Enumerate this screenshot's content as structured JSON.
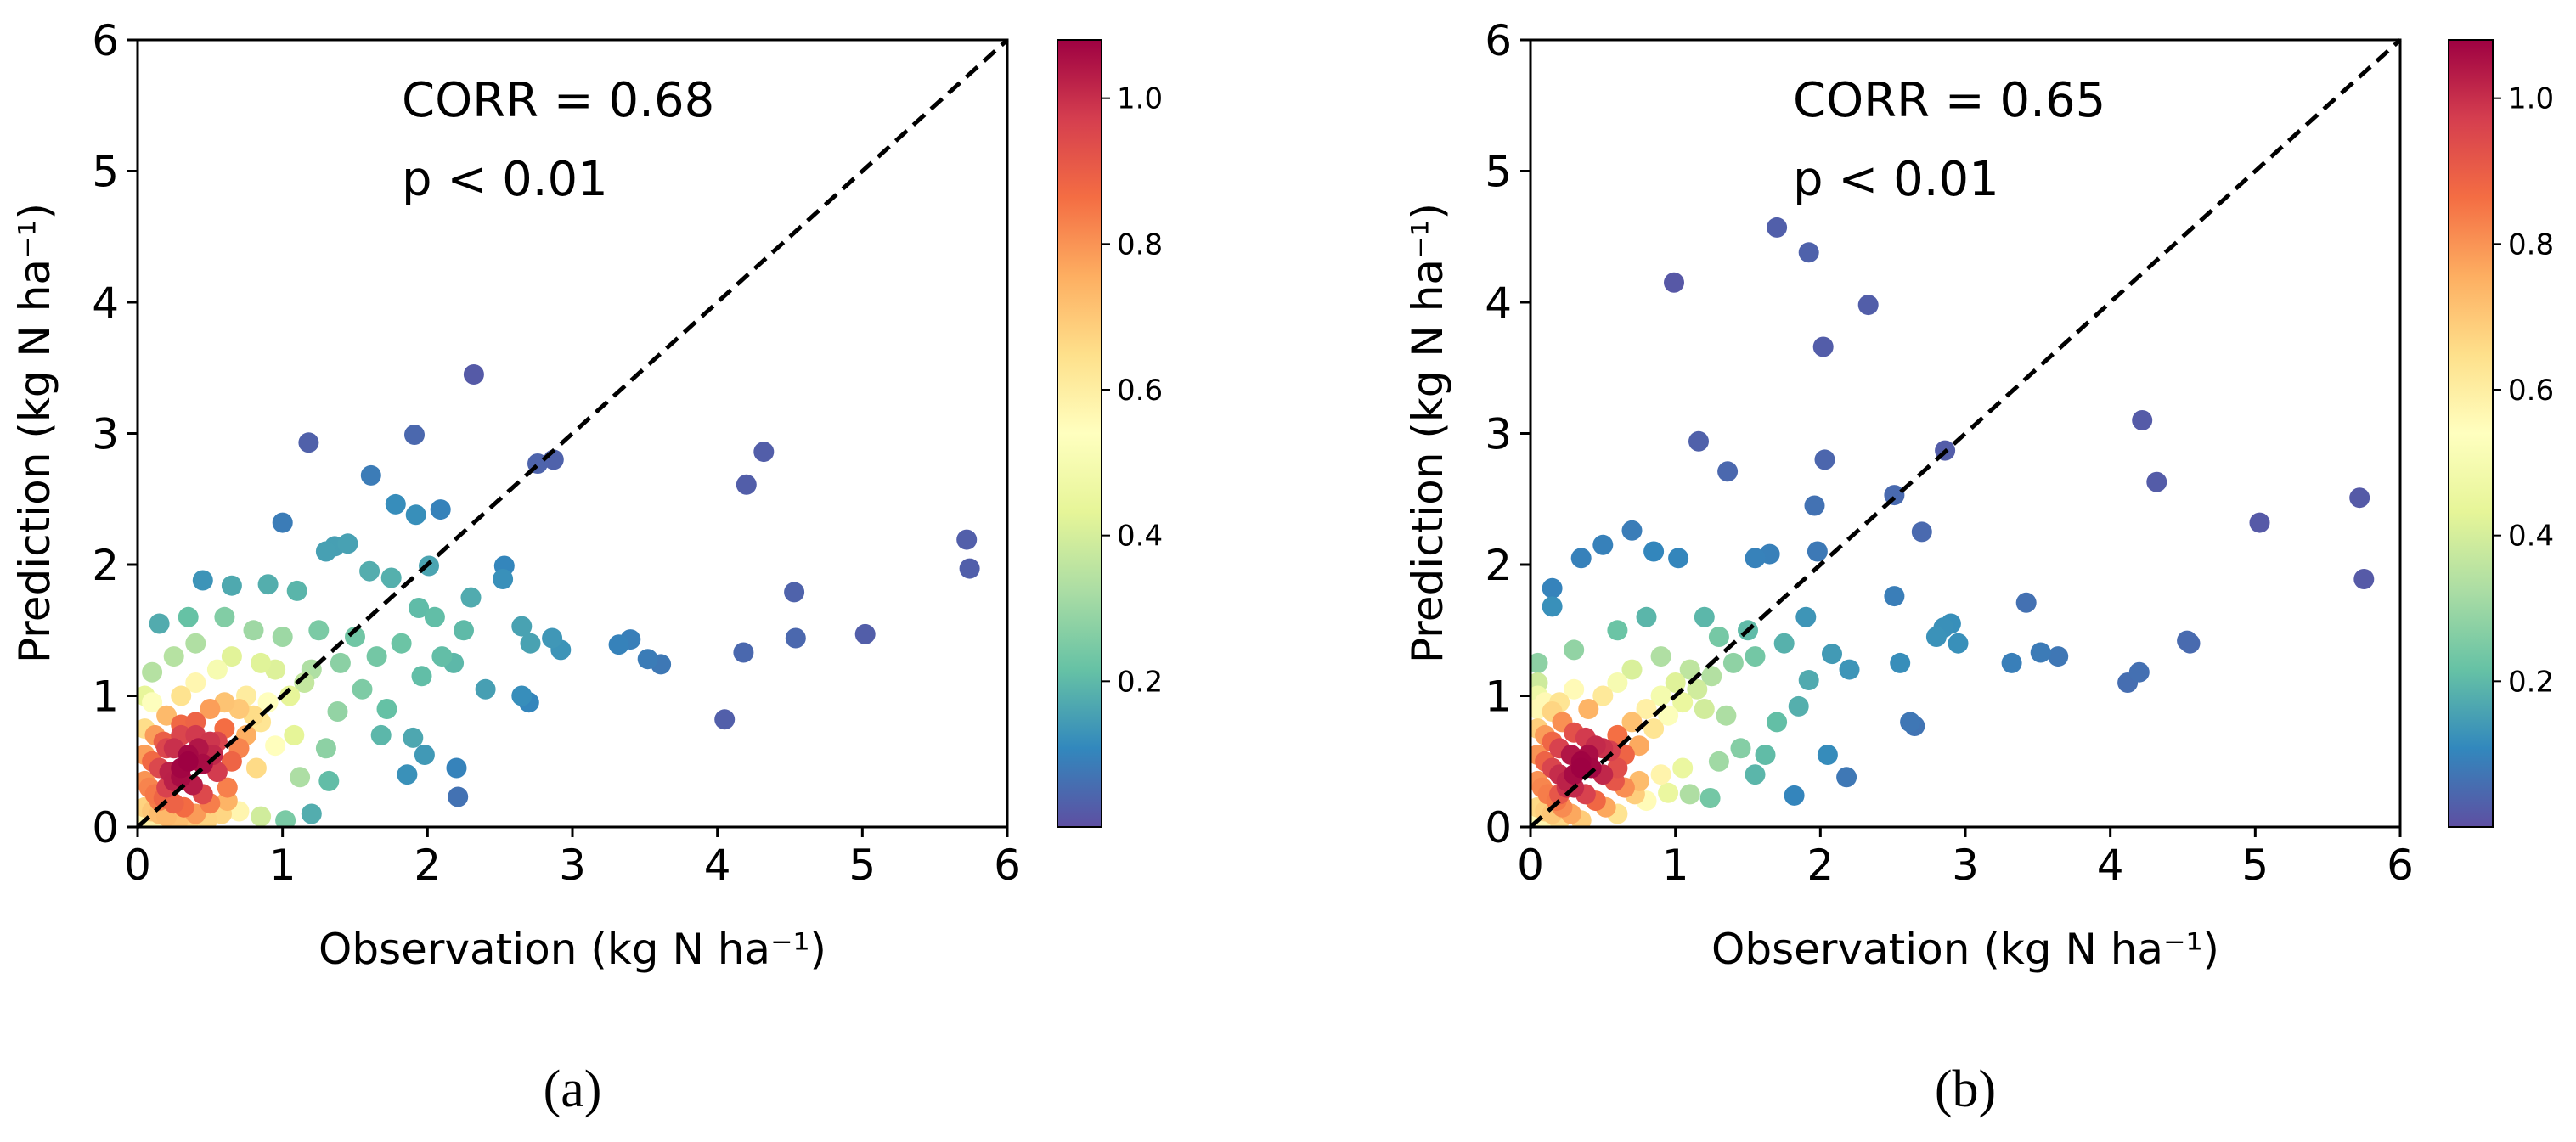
{
  "chart_data": [
    {
      "type": "scatter",
      "panel_label": "(a)",
      "xlabel": "Observation (kg N ha⁻¹)",
      "ylabel": "Prediction (kg N ha⁻¹)",
      "xlim": [
        0,
        6
      ],
      "ylim": [
        0,
        6
      ],
      "xticks": [
        "0",
        "1",
        "2",
        "3",
        "4",
        "5",
        "6"
      ],
      "yticks": [
        "0",
        "1",
        "2",
        "3",
        "4",
        "5",
        "6"
      ],
      "annotations": [
        "CORR = 0.68",
        "p < 0.01"
      ],
      "reference_line": "1:1 dashed",
      "colorbar": {
        "ticks": [
          "0.2",
          "0.4",
          "0.6",
          "0.8",
          "1.0"
        ],
        "range": [
          0.0,
          1.08
        ],
        "colormap": "Spectral_r"
      },
      "points": [
        [
          2.32,
          3.45
        ],
        [
          1.91,
          2.99
        ],
        [
          1.18,
          2.93
        ],
        [
          4.32,
          2.86
        ],
        [
          2.87,
          2.8
        ],
        [
          2.76,
          2.77
        ],
        [
          4.2,
          2.61
        ],
        [
          2.09,
          2.42
        ],
        [
          1.61,
          2.68
        ],
        [
          1.78,
          2.46
        ],
        [
          1.92,
          2.38
        ],
        [
          5.72,
          2.19
        ],
        [
          5.74,
          1.97
        ],
        [
          1.36,
          2.14
        ],
        [
          1.0,
          2.32
        ],
        [
          1.45,
          2.16
        ],
        [
          1.3,
          2.1
        ],
        [
          2.53,
          1.99
        ],
        [
          2.52,
          1.89
        ],
        [
          2.01,
          1.99
        ],
        [
          4.53,
          1.79
        ],
        [
          5.02,
          1.47
        ],
        [
          4.54,
          1.44
        ],
        [
          1.94,
          1.67
        ],
        [
          0.45,
          1.88
        ],
        [
          0.15,
          1.55
        ],
        [
          0.35,
          1.6
        ],
        [
          0.65,
          1.84
        ],
        [
          0.9,
          1.85
        ],
        [
          1.1,
          1.8
        ],
        [
          1.6,
          1.95
        ],
        [
          1.75,
          1.9
        ],
        [
          2.3,
          1.75
        ],
        [
          2.65,
          1.53
        ],
        [
          2.71,
          1.4
        ],
        [
          2.86,
          1.44
        ],
        [
          2.92,
          1.35
        ],
        [
          3.32,
          1.39
        ],
        [
          3.4,
          1.43
        ],
        [
          3.52,
          1.28
        ],
        [
          3.61,
          1.24
        ],
        [
          4.18,
          1.33
        ],
        [
          4.05,
          0.82
        ],
        [
          2.25,
          1.5
        ],
        [
          2.1,
          1.3
        ],
        [
          1.96,
          1.15
        ],
        [
          2.4,
          1.05
        ],
        [
          2.65,
          1.0
        ],
        [
          2.7,
          0.95
        ],
        [
          2.2,
          0.45
        ],
        [
          2.21,
          0.23
        ],
        [
          1.98,
          0.55
        ],
        [
          1.9,
          0.68
        ],
        [
          1.86,
          0.4
        ],
        [
          1.68,
          0.7
        ],
        [
          1.72,
          0.9
        ],
        [
          1.55,
          1.05
        ],
        [
          1.38,
          0.88
        ],
        [
          1.3,
          0.6
        ],
        [
          1.32,
          0.35
        ],
        [
          1.2,
          0.1
        ],
        [
          1.02,
          0.05
        ],
        [
          0.85,
          0.08
        ],
        [
          0.7,
          0.12
        ],
        [
          1.12,
          0.38
        ],
        [
          1.08,
          0.7
        ],
        [
          0.95,
          0.62
        ],
        [
          0.82,
          0.45
        ],
        [
          0.62,
          0.3
        ],
        [
          0.52,
          0.55
        ],
        [
          1.0,
          1.45
        ],
        [
          1.25,
          1.5
        ],
        [
          1.5,
          1.45
        ],
        [
          1.82,
          1.4
        ],
        [
          2.05,
          1.6
        ],
        [
          2.18,
          1.25
        ],
        [
          0.25,
          1.3
        ],
        [
          0.1,
          1.18
        ],
        [
          0.4,
          1.4
        ],
        [
          0.6,
          1.6
        ],
        [
          0.8,
          1.5
        ],
        [
          0.05,
          1.0
        ],
        [
          0.1,
          0.95
        ],
        [
          0.2,
          0.85
        ],
        [
          0.3,
          0.78
        ],
        [
          0.4,
          0.7
        ],
        [
          0.55,
          0.65
        ],
        [
          0.7,
          0.6
        ],
        [
          0.8,
          0.85
        ],
        [
          0.9,
          0.95
        ],
        [
          1.15,
          1.1
        ],
        [
          1.4,
          1.25
        ],
        [
          1.65,
          1.3
        ],
        [
          0.05,
          0.75
        ],
        [
          0.12,
          0.7
        ],
        [
          0.18,
          0.65
        ],
        [
          0.25,
          0.6
        ],
        [
          0.35,
          0.55
        ],
        [
          0.45,
          0.48
        ],
        [
          0.55,
          0.42
        ],
        [
          0.65,
          0.5
        ],
        [
          0.75,
          0.7
        ],
        [
          0.85,
          0.8
        ],
        [
          1.05,
          1.0
        ],
        [
          1.2,
          1.2
        ],
        [
          0.05,
          0.55
        ],
        [
          0.1,
          0.5
        ],
        [
          0.15,
          0.45
        ],
        [
          0.22,
          0.42
        ],
        [
          0.3,
          0.38
        ],
        [
          0.38,
          0.32
        ],
        [
          0.45,
          0.25
        ],
        [
          0.5,
          0.18
        ],
        [
          0.58,
          0.1
        ],
        [
          0.62,
          0.2
        ],
        [
          0.05,
          0.35
        ],
        [
          0.08,
          0.3
        ],
        [
          0.12,
          0.25
        ],
        [
          0.18,
          0.22
        ],
        [
          0.25,
          0.18
        ],
        [
          0.32,
          0.15
        ],
        [
          0.4,
          0.1
        ],
        [
          0.48,
          0.05
        ],
        [
          0.05,
          0.15
        ],
        [
          0.1,
          0.12
        ],
        [
          0.15,
          0.1
        ],
        [
          0.2,
          0.08
        ],
        [
          0.28,
          0.05
        ],
        [
          0.35,
          0.03
        ],
        [
          0.05,
          0.05
        ],
        [
          0.1,
          0.03
        ],
        [
          0.15,
          0.2
        ],
        [
          0.2,
          0.3
        ],
        [
          0.25,
          0.35
        ],
        [
          0.3,
          0.45
        ],
        [
          0.35,
          0.5
        ],
        [
          0.42,
          0.6
        ],
        [
          0.5,
          0.65
        ],
        [
          0.6,
          0.75
        ],
        [
          0.7,
          0.9
        ],
        [
          0.75,
          1.0
        ],
        [
          0.95,
          1.2
        ],
        [
          0.3,
          1.0
        ],
        [
          0.4,
          1.1
        ],
        [
          0.55,
          1.2
        ],
        [
          0.65,
          1.3
        ],
        [
          0.85,
          1.25
        ],
        [
          0.5,
          0.9
        ],
        [
          0.6,
          0.95
        ],
        [
          0.2,
          0.6
        ],
        [
          0.3,
          0.7
        ],
        [
          0.4,
          0.8
        ]
      ]
    },
    {
      "type": "scatter",
      "panel_label": "(b)",
      "xlabel": "Observation (kg N ha⁻¹)",
      "ylabel": "Prediction (kg N ha⁻¹)",
      "xlim": [
        0,
        6
      ],
      "ylim": [
        0,
        6
      ],
      "xticks": [
        "0",
        "1",
        "2",
        "3",
        "4",
        "5",
        "6"
      ],
      "yticks": [
        "0",
        "1",
        "2",
        "3",
        "4",
        "5",
        "6"
      ],
      "annotations": [
        "CORR = 0.65",
        "p < 0.01"
      ],
      "reference_line": "1:1 dashed",
      "colorbar": {
        "ticks": [
          "0.2",
          "0.4",
          "0.6",
          "0.8",
          "1.0"
        ],
        "range": [
          0.0,
          1.08
        ],
        "colormap": "Spectral_r"
      },
      "points": [
        [
          1.7,
          4.57
        ],
        [
          1.92,
          4.38
        ],
        [
          0.99,
          4.15
        ],
        [
          2.33,
          3.98
        ],
        [
          2.02,
          3.66
        ],
        [
          4.22,
          3.1
        ],
        [
          1.16,
          2.94
        ],
        [
          2.86,
          2.87
        ],
        [
          2.03,
          2.8
        ],
        [
          1.36,
          2.71
        ],
        [
          4.32,
          2.63
        ],
        [
          2.51,
          2.53
        ],
        [
          5.72,
          2.51
        ],
        [
          1.96,
          2.45
        ],
        [
          5.03,
          2.32
        ],
        [
          0.7,
          2.26
        ],
        [
          2.7,
          2.25
        ],
        [
          0.35,
          2.05
        ],
        [
          0.5,
          2.15
        ],
        [
          0.85,
          2.1
        ],
        [
          1.02,
          2.05
        ],
        [
          1.55,
          2.05
        ],
        [
          1.65,
          2.08
        ],
        [
          1.98,
          2.1
        ],
        [
          0.15,
          1.82
        ],
        [
          0.15,
          1.68
        ],
        [
          5.75,
          1.89
        ],
        [
          2.51,
          1.76
        ],
        [
          3.42,
          1.71
        ],
        [
          4.53,
          1.42
        ],
        [
          4.55,
          1.4
        ],
        [
          3.52,
          1.33
        ],
        [
          3.64,
          1.3
        ],
        [
          3.32,
          1.25
        ],
        [
          2.8,
          1.45
        ],
        [
          2.9,
          1.55
        ],
        [
          2.95,
          1.4
        ],
        [
          2.55,
          1.25
        ],
        [
          2.85,
          1.52
        ],
        [
          2.2,
          1.2
        ],
        [
          2.08,
          1.32
        ],
        [
          1.92,
          1.12
        ],
        [
          1.85,
          0.92
        ],
        [
          1.7,
          0.8
        ],
        [
          1.62,
          0.55
        ],
        [
          1.55,
          0.4
        ],
        [
          1.45,
          0.6
        ],
        [
          1.3,
          0.5
        ],
        [
          1.24,
          0.22
        ],
        [
          1.1,
          0.25
        ],
        [
          0.95,
          0.26
        ],
        [
          1.05,
          0.45
        ],
        [
          2.05,
          0.55
        ],
        [
          2.18,
          0.38
        ],
        [
          1.82,
          0.24
        ],
        [
          2.62,
          0.8
        ],
        [
          2.65,
          0.77
        ],
        [
          4.12,
          1.1
        ],
        [
          4.2,
          1.18
        ],
        [
          1.9,
          1.6
        ],
        [
          1.75,
          1.4
        ],
        [
          1.5,
          1.5
        ],
        [
          1.3,
          1.45
        ],
        [
          1.2,
          1.6
        ],
        [
          0.8,
          1.6
        ],
        [
          0.6,
          1.5
        ],
        [
          0.3,
          1.35
        ],
        [
          0.05,
          1.25
        ],
        [
          0.05,
          1.1
        ],
        [
          0.1,
          0.95
        ],
        [
          0.15,
          0.88
        ],
        [
          0.22,
          0.8
        ],
        [
          0.3,
          0.72
        ],
        [
          0.38,
          0.68
        ],
        [
          0.45,
          0.62
        ],
        [
          0.55,
          0.58
        ],
        [
          0.65,
          0.55
        ],
        [
          0.75,
          0.62
        ],
        [
          0.85,
          0.75
        ],
        [
          0.95,
          0.85
        ],
        [
          1.05,
          0.95
        ],
        [
          1.15,
          1.05
        ],
        [
          1.25,
          1.15
        ],
        [
          1.4,
          1.25
        ],
        [
          1.55,
          1.3
        ],
        [
          0.05,
          0.75
        ],
        [
          0.1,
          0.7
        ],
        [
          0.15,
          0.65
        ],
        [
          0.2,
          0.6
        ],
        [
          0.28,
          0.55
        ],
        [
          0.35,
          0.5
        ],
        [
          0.42,
          0.45
        ],
        [
          0.5,
          0.4
        ],
        [
          0.58,
          0.35
        ],
        [
          0.65,
          0.3
        ],
        [
          0.72,
          0.25
        ],
        [
          0.8,
          0.2
        ],
        [
          0.05,
          0.55
        ],
        [
          0.1,
          0.5
        ],
        [
          0.15,
          0.45
        ],
        [
          0.2,
          0.4
        ],
        [
          0.25,
          0.35
        ],
        [
          0.3,
          0.3
        ],
        [
          0.38,
          0.25
        ],
        [
          0.45,
          0.2
        ],
        [
          0.52,
          0.15
        ],
        [
          0.6,
          0.1
        ],
        [
          0.05,
          0.35
        ],
        [
          0.08,
          0.3
        ],
        [
          0.12,
          0.25
        ],
        [
          0.18,
          0.2
        ],
        [
          0.22,
          0.15
        ],
        [
          0.28,
          0.1
        ],
        [
          0.35,
          0.05
        ],
        [
          0.05,
          0.15
        ],
        [
          0.1,
          0.12
        ],
        [
          0.15,
          0.1
        ],
        [
          0.2,
          0.05
        ],
        [
          0.05,
          0.05
        ],
        [
          0.1,
          0.03
        ],
        [
          0.2,
          0.25
        ],
        [
          0.25,
          0.3
        ],
        [
          0.3,
          0.4
        ],
        [
          0.35,
          0.45
        ],
        [
          0.4,
          0.55
        ],
        [
          0.5,
          0.6
        ],
        [
          0.6,
          0.7
        ],
        [
          0.7,
          0.8
        ],
        [
          0.8,
          0.9
        ],
        [
          0.9,
          1.0
        ],
        [
          1.0,
          1.1
        ],
        [
          1.1,
          1.2
        ],
        [
          0.4,
          0.9
        ],
        [
          0.5,
          1.0
        ],
        [
          0.6,
          1.1
        ],
        [
          0.7,
          1.2
        ],
        [
          0.9,
          1.3
        ],
        [
          0.2,
          0.95
        ],
        [
          0.3,
          1.05
        ],
        [
          1.2,
          0.9
        ],
        [
          1.35,
          0.85
        ],
        [
          0.9,
          0.4
        ],
        [
          0.75,
          0.35
        ],
        [
          0.6,
          0.45
        ],
        [
          0.05,
          0.9
        ],
        [
          0.05,
          1.0
        ]
      ]
    }
  ]
}
